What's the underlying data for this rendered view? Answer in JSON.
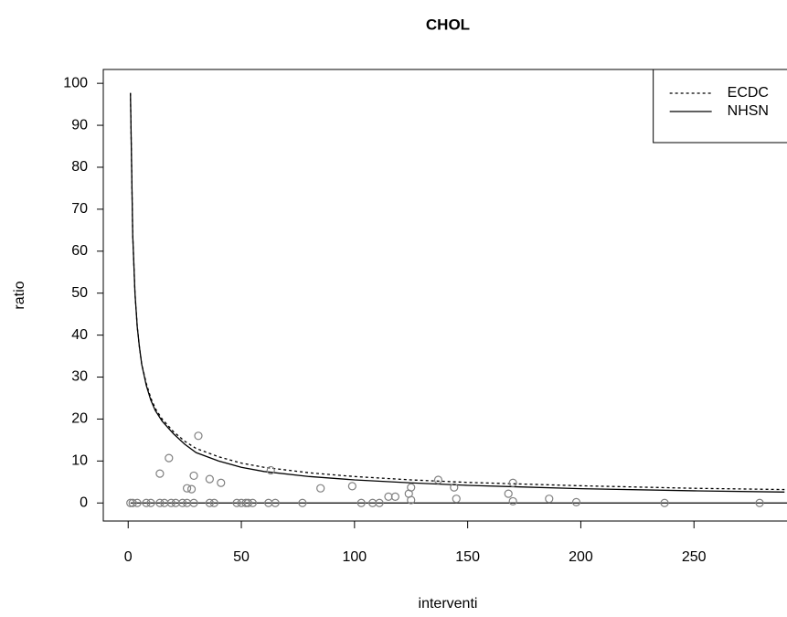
{
  "chart_data": {
    "type": "line",
    "title": "CHOL",
    "x_label": "interventi",
    "y_label": "ratio",
    "xlim": [
      -11,
      295
    ],
    "ylim": [
      -4.3,
      103.3
    ],
    "xticks": [
      0,
      50,
      100,
      150,
      200,
      250
    ],
    "yticks": [
      0,
      10,
      20,
      30,
      40,
      50,
      60,
      70,
      80,
      90,
      100
    ],
    "legend": "top-right",
    "hline": 0,
    "x": [
      1,
      2,
      3,
      4,
      5,
      6,
      8,
      10,
      12,
      15,
      20,
      25,
      30,
      40,
      50,
      60,
      80,
      100,
      125,
      150,
      175,
      200,
      250,
      290
    ],
    "series": [
      {
        "name": "ECDC",
        "color": "#000000",
        "linestyle": "dotted",
        "values": [
          97.7,
          64,
          50,
          42,
          37,
          33,
          28.5,
          25,
          22.5,
          20,
          17,
          14.7,
          13,
          11,
          9.5,
          8.5,
          7.2,
          6.3,
          5.5,
          4.9,
          4.5,
          4.1,
          3.5,
          3.2
        ]
      },
      {
        "name": "NHSN",
        "color": "#000000",
        "linestyle": "solid",
        "values": [
          97.7,
          64,
          50,
          42,
          37,
          33,
          28,
          24.5,
          22,
          19.5,
          16.5,
          14,
          12,
          10,
          8.5,
          7.5,
          6.3,
          5.5,
          4.8,
          4.2,
          3.8,
          3.4,
          2.9,
          2.6
        ]
      }
    ],
    "points": {
      "color": "#808080",
      "x": [
        1,
        2,
        4,
        8,
        10,
        14,
        14,
        16,
        18,
        19,
        21,
        24,
        26,
        26,
        28,
        29,
        29,
        31,
        36,
        36,
        38,
        41,
        48,
        50,
        52,
        53,
        55,
        62,
        63,
        65,
        77,
        85,
        99,
        103,
        108,
        111,
        115,
        118,
        124,
        125,
        125,
        137,
        144,
        145,
        168,
        170,
        170,
        186,
        198,
        237,
        279
      ],
      "y": [
        0,
        0,
        0,
        0,
        0,
        7,
        0,
        0,
        10.7,
        0,
        0,
        0,
        0,
        3.5,
        3.3,
        6.5,
        0,
        16,
        0,
        5.7,
        0,
        4.8,
        0,
        0,
        0,
        0,
        0,
        0,
        7.8,
        0,
        0,
        3.5,
        4,
        0,
        0,
        0,
        1.5,
        1.5,
        2.2,
        3.7,
        0.7,
        5.5,
        3.7,
        1,
        2.2,
        4.8,
        0.4,
        1,
        0.2,
        0,
        0
      ]
    }
  }
}
